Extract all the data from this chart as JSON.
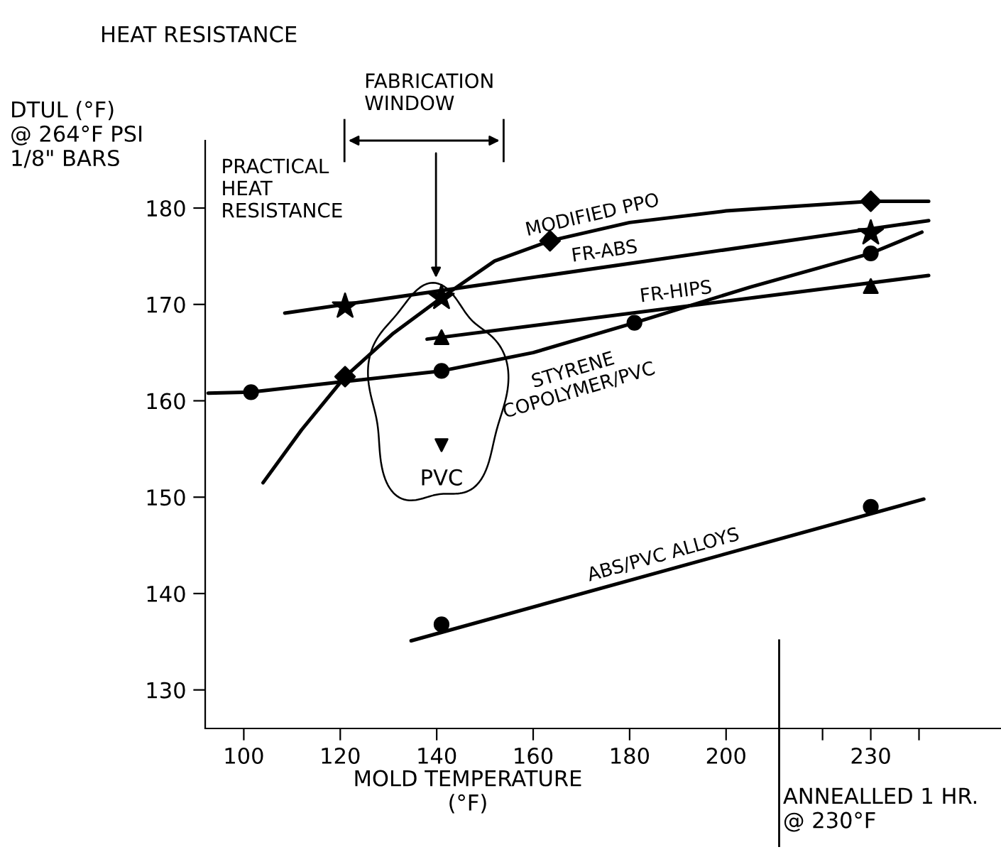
{
  "chart_data": {
    "type": "line",
    "title": "HEAT RESISTANCE",
    "xlabel": "MOLD TEMPERATURE\n(°F)",
    "ylabel": "DTUL (°F)\n@ 264°F PSI\n1/8\" BARS",
    "xlim": [
      92,
      257
    ],
    "ylim": [
      126,
      187
    ],
    "xticks": [
      100,
      120,
      140,
      160,
      180,
      200,
      {
        "value": 220,
        "label": null
      },
      230,
      {
        "value": 240,
        "label": null
      }
    ],
    "yticks": [
      130,
      140,
      150,
      160,
      170,
      180
    ],
    "grid": false,
    "legend": false,
    "line_style": "solid",
    "series": [
      {
        "name": "MODIFIED PPO",
        "color": "#000000",
        "marker": "none",
        "x": [
          104,
          112,
          121,
          131,
          141,
          152,
          163.5,
          180,
          200,
          230,
          242
        ],
        "values": [
          151.5,
          157,
          162.5,
          167,
          170.7,
          174.5,
          176.6,
          178.5,
          179.7,
          180.7,
          180.7
        ]
      },
      {
        "type": "scatter",
        "color": "#000000",
        "marker": "diamond",
        "x": [
          121,
          163.5,
          230
        ],
        "values": [
          162.5,
          176.6,
          180.7
        ]
      },
      {
        "name": "FR-ABS",
        "color": "#000000",
        "marker": "none",
        "x": [
          108.5,
          242
        ],
        "values": [
          169.1,
          178.7
        ]
      },
      {
        "type": "scatter",
        "color": "#000000",
        "marker": "star",
        "x": [
          121,
          141,
          230
        ],
        "values": [
          169.8,
          170.7,
          177.4
        ]
      },
      {
        "name": "FR-HIPS",
        "color": "#000000",
        "marker": "none",
        "x": [
          138,
          242
        ],
        "values": [
          166.4,
          173
        ]
      },
      {
        "type": "scatter",
        "color": "#000000",
        "marker": "triangle",
        "x": [
          141,
          230
        ],
        "values": [
          166.6,
          171.9
        ]
      },
      {
        "name": "STYRENE\nCOPOLYMER/PVC",
        "color": "#000000",
        "marker": "none",
        "x": [
          92.6,
          101.5,
          121,
          141,
          160,
          181,
          205,
          230,
          240.6
        ],
        "values": [
          160.8,
          160.9,
          162,
          163.1,
          165,
          168.1,
          171.8,
          175.3,
          177.5
        ]
      },
      {
        "type": "scatter",
        "color": "#000000",
        "marker": "circle",
        "x": [
          101.5,
          141,
          181,
          230
        ],
        "values": [
          160.9,
          163.1,
          168.1,
          175.3
        ]
      },
      {
        "name": "ABS/PVC ALLOYS",
        "color": "#000000",
        "marker": "none",
        "x": [
          134.7,
          241
        ],
        "values": [
          135.1,
          149.8
        ]
      },
      {
        "type": "scatter",
        "color": "#000000",
        "marker": "circle",
        "x": [
          141,
          230
        ],
        "values": [
          136.8,
          149.0
        ]
      },
      {
        "name": "PVC",
        "type": "scatter",
        "color": "#000000",
        "marker": "triangle_down",
        "x": [
          141
        ],
        "values": [
          155.4
        ]
      }
    ],
    "ref_lines": [
      {
        "axis": "x",
        "value": 211,
        "label": "ANNEALLED 1 HR.\n@ 230°F",
        "color": "#000000"
      }
    ],
    "annotations": [
      "PRACTICAL\nHEAT\nRESISTANCE",
      "FABRICATION\nWINDOW"
    ]
  }
}
